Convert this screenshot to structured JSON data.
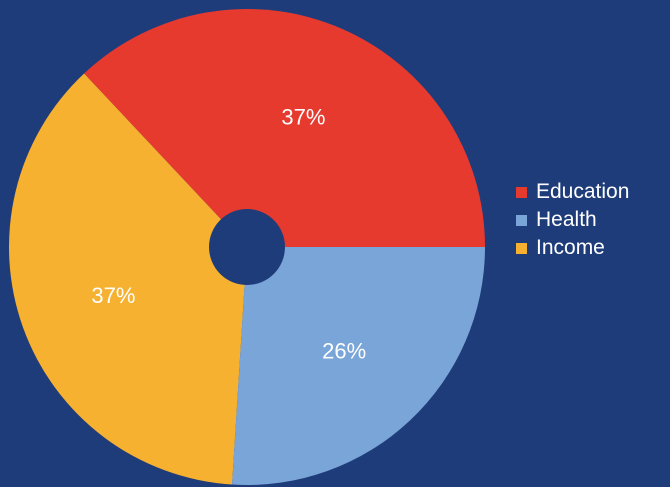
{
  "chart_data": {
    "type": "pie",
    "title": "",
    "categories": [
      "Education",
      "Health",
      "Income"
    ],
    "values": [
      37,
      26,
      37
    ],
    "data_labels": [
      "37%",
      "26%",
      "37%"
    ],
    "colors": [
      "#e63a2f",
      "#7aa5d8",
      "#f6b131"
    ],
    "background": "#1f3c7a",
    "legend": {
      "placement": "right",
      "entries": [
        "Education",
        "Health",
        "Income"
      ]
    },
    "hole": true
  }
}
